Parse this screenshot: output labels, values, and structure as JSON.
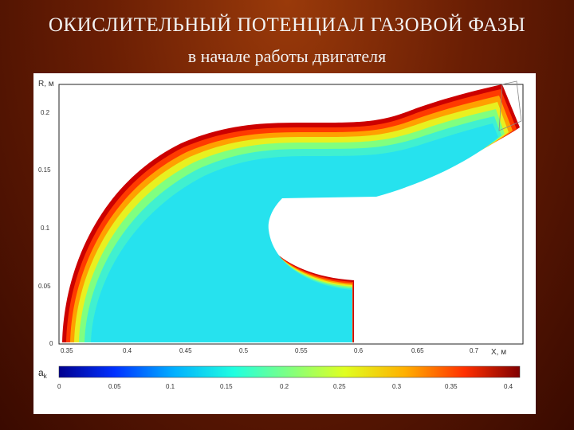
{
  "title": "ОКИСЛИТЕЛЬНЫЙ ПОТЕНЦИАЛ ГАЗОВОЙ ФАЗЫ",
  "subtitle": "в начале работы двигателя",
  "plot": {
    "ylabel": "R, м",
    "xlabel": "X, м",
    "y_ticks": [
      "0.2",
      "0.15",
      "0.1",
      "0.05",
      "0"
    ],
    "x_ticks": [
      "0.35",
      "0.4",
      "0.45",
      "0.5",
      "0.55",
      "0.6",
      "0.65",
      "0.7"
    ]
  },
  "colorbar": {
    "label": "a",
    "label_sub": "k",
    "ticks": [
      "0",
      "0.05",
      "0.1",
      "0.15",
      "0.2",
      "0.25",
      "0.3",
      "0.35",
      "0.4"
    ],
    "colors": [
      "#00008f",
      "#0030ff",
      "#00b0ff",
      "#20ffe0",
      "#80ff80",
      "#e0ff20",
      "#ffb000",
      "#ff3000",
      "#800000"
    ],
    "field_color": "#26e2ee"
  }
}
